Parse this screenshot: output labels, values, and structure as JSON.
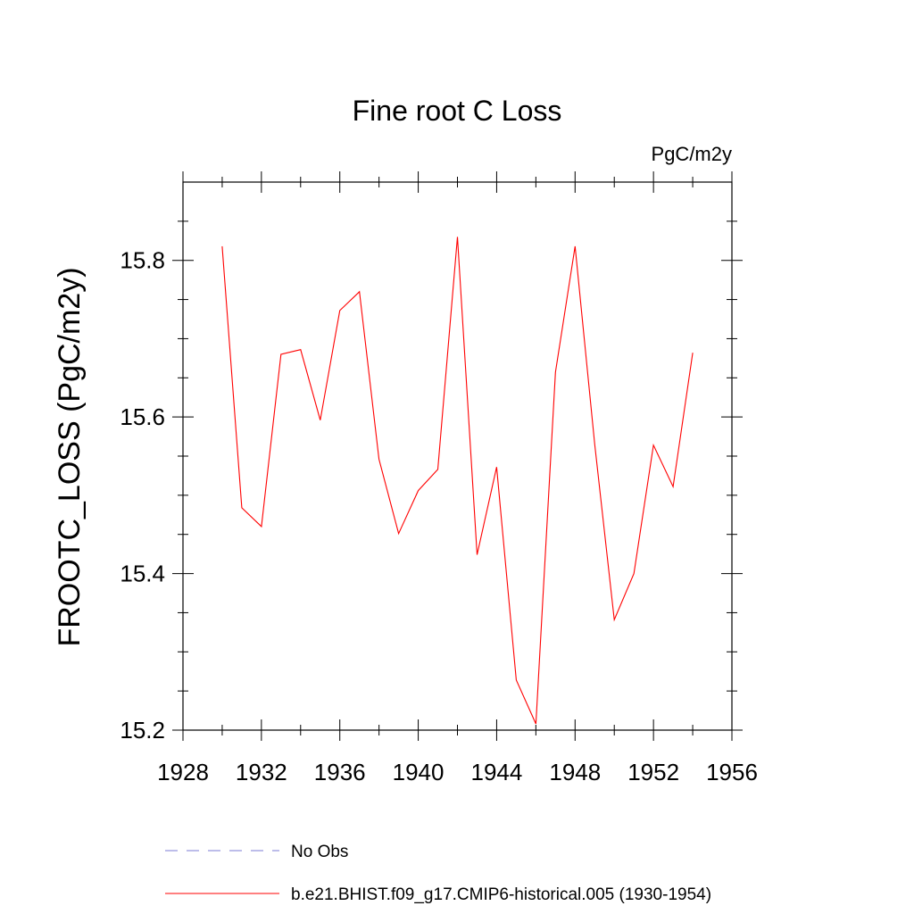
{
  "chart_data": {
    "type": "line",
    "title": "Fine root C Loss",
    "units_label": "PgC/m2y",
    "ylabel": "FROOTC_LOSS  (PgC/m2y)",
    "xlabel": "",
    "xlim": [
      1928,
      1956
    ],
    "ylim": [
      15.2,
      15.9
    ],
    "x_ticks": [
      1928,
      1932,
      1936,
      1940,
      1944,
      1948,
      1952,
      1956
    ],
    "x_minor_ticks": [
      1930,
      1934,
      1938,
      1942,
      1946,
      1950,
      1954
    ],
    "y_ticks": [
      15.2,
      15.4,
      15.6,
      15.8
    ],
    "y_minor_ticks": [
      15.25,
      15.3,
      15.35,
      15.45,
      15.5,
      15.55,
      15.65,
      15.7,
      15.75,
      15.85
    ],
    "x_tick_labels": [
      "1928",
      "1932",
      "1936",
      "1940",
      "1944",
      "1948",
      "1952",
      "1956"
    ],
    "y_tick_labels": [
      "15.2",
      "15.4",
      "15.6",
      "15.8"
    ],
    "grid": false,
    "legend_position": "bottom",
    "series": [
      {
        "name": "b.e21.BHIST.f09_g17.CMIP6-historical.005 (1930-1954)",
        "color": "#ff0000",
        "style": "solid",
        "x": [
          1930,
          1931,
          1932,
          1933,
          1934,
          1935,
          1936,
          1937,
          1938,
          1939,
          1940,
          1941,
          1942,
          1943,
          1944,
          1945,
          1946,
          1947,
          1948,
          1949,
          1950,
          1951,
          1952,
          1953,
          1954
        ],
        "values": [
          15.818,
          15.484,
          15.46,
          15.68,
          15.686,
          15.596,
          15.736,
          15.76,
          15.546,
          15.451,
          15.506,
          15.533,
          15.83,
          15.424,
          15.536,
          15.264,
          15.208,
          15.657,
          15.818,
          15.565,
          15.341,
          15.4,
          15.564,
          15.511,
          15.682
        ]
      }
    ],
    "legend": [
      {
        "label": "No Obs",
        "color": "#7b7bd6",
        "style": "dashed"
      },
      {
        "label": "b.e21.BHIST.f09_g17.CMIP6-historical.005 (1930-1954)",
        "color": "#ff0000",
        "style": "solid"
      }
    ]
  }
}
